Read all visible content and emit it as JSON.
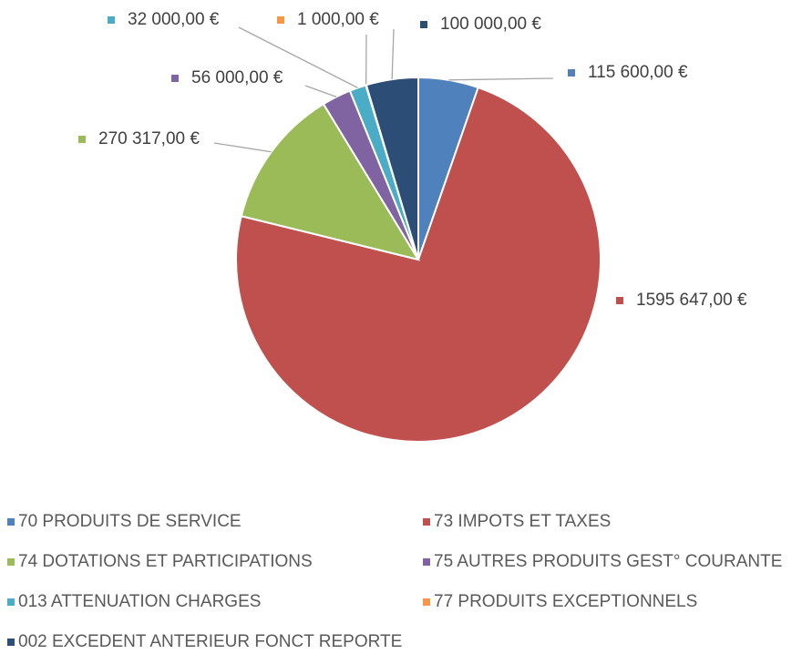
{
  "chart_data": {
    "type": "pie",
    "categories": [
      "70 PRODUITS DE SERVICE",
      "73 IMPOTS ET TAXES",
      "74 DOTATIONS ET PARTICIPATIONS",
      "75 AUTRES PRODUITS GEST° COURANTE",
      "013 ATTENUATION CHARGES",
      "77 PRODUITS EXCEPTIONNELS",
      "002 EXCEDENT ANTERIEUR FONCT REPORTE"
    ],
    "values": [
      115600,
      1595647,
      270317,
      56000,
      32000,
      1000,
      100000
    ],
    "value_labels": [
      "115 600,00 €",
      "1595 647,00 €",
      "270 317,00 €",
      "56 000,00 €",
      "32 000,00 €",
      "1 000,00 €",
      "100 000,00 €"
    ],
    "colors": [
      "#4f81bd",
      "#c0504d",
      "#9bbb59",
      "#8064a2",
      "#4bacc6",
      "#f79646",
      "#2c4d75"
    ],
    "legend": "bottom"
  }
}
